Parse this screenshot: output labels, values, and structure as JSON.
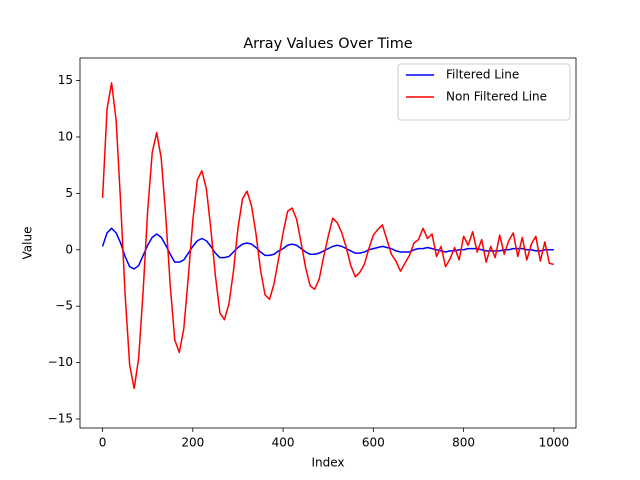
{
  "chart_data": {
    "type": "line",
    "title": "Array Values Over Time",
    "x_label": "Index",
    "y_label": "Value",
    "x": [
      0,
      10,
      20,
      30,
      40,
      50,
      60,
      70,
      80,
      90,
      100,
      110,
      120,
      130,
      140,
      150,
      160,
      170,
      180,
      190,
      200,
      210,
      220,
      230,
      240,
      250,
      260,
      270,
      280,
      290,
      300,
      310,
      320,
      330,
      340,
      350,
      360,
      370,
      380,
      390,
      400,
      410,
      420,
      430,
      440,
      450,
      460,
      470,
      480,
      490,
      500,
      510,
      520,
      530,
      540,
      550,
      560,
      570,
      580,
      590,
      600,
      610,
      620,
      630,
      640,
      650,
      660,
      670,
      680,
      690,
      700,
      710,
      720,
      730,
      740,
      750,
      760,
      770,
      780,
      790,
      800,
      810,
      820,
      830,
      840,
      850,
      860,
      870,
      880,
      890,
      900,
      910,
      920,
      930,
      940,
      950,
      960,
      970,
      980,
      990,
      1000
    ],
    "series": [
      {
        "name": "Filtered Line",
        "color": "#0000ff",
        "values": [
          0.3,
          1.5,
          1.9,
          1.5,
          0.6,
          -0.6,
          -1.5,
          -1.7,
          -1.4,
          -0.5,
          0.4,
          1.1,
          1.4,
          1.1,
          0.4,
          -0.4,
          -1.1,
          -1.1,
          -0.9,
          -0.3,
          0.3,
          0.8,
          1.0,
          0.8,
          0.3,
          -0.3,
          -0.7,
          -0.7,
          -0.6,
          -0.2,
          0.2,
          0.5,
          0.6,
          0.5,
          0.2,
          -0.2,
          -0.5,
          -0.5,
          -0.4,
          -0.1,
          0.1,
          0.4,
          0.5,
          0.4,
          0.1,
          -0.2,
          -0.4,
          -0.4,
          -0.3,
          -0.1,
          0.1,
          0.3,
          0.4,
          0.3,
          0.1,
          -0.1,
          -0.3,
          -0.3,
          -0.2,
          0.0,
          0.1,
          0.2,
          0.3,
          0.2,
          0.1,
          -0.1,
          -0.2,
          -0.2,
          -0.2,
          0.0,
          0.1,
          0.1,
          0.2,
          0.1,
          0.0,
          -0.1,
          -0.2,
          -0.1,
          -0.1,
          0.0,
          0.0,
          0.1,
          0.1,
          0.1,
          0.0,
          -0.1,
          -0.1,
          -0.1,
          -0.1,
          0.0,
          0.0,
          0.1,
          0.1,
          0.1,
          0.0,
          0.0,
          -0.1,
          -0.1,
          0.0,
          0.0,
          0.0
        ]
      },
      {
        "name": "Non Filtered Line",
        "color": "#ff0000",
        "values": [
          4.6,
          12.5,
          14.8,
          11.5,
          4.2,
          -4.0,
          -10.2,
          -12.3,
          -9.6,
          -3.6,
          3.5,
          8.6,
          10.4,
          8.1,
          3.0,
          -3.2,
          -8.0,
          -9.1,
          -7.0,
          -2.4,
          2.6,
          6.2,
          7.0,
          5.4,
          1.8,
          -2.3,
          -5.6,
          -6.2,
          -4.8,
          -1.9,
          1.9,
          4.5,
          5.2,
          3.9,
          1.4,
          -1.8,
          -4.0,
          -4.4,
          -3.0,
          -0.8,
          1.5,
          3.4,
          3.7,
          2.7,
          0.6,
          -1.6,
          -3.2,
          -3.5,
          -2.6,
          -0.6,
          1.2,
          2.8,
          2.4,
          1.5,
          0.2,
          -1.4,
          -2.4,
          -2.0,
          -1.3,
          0.1,
          1.3,
          1.8,
          2.2,
          0.9,
          -0.4,
          -1.0,
          -1.9,
          -1.2,
          -0.5,
          0.6,
          0.9,
          1.9,
          1.0,
          1.4,
          -0.6,
          0.3,
          -1.5,
          -0.8,
          0.2,
          -0.9,
          1.2,
          0.4,
          1.6,
          -0.2,
          0.9,
          -1.1,
          0.3,
          -0.7,
          1.3,
          -0.4,
          0.8,
          1.5,
          -0.6,
          1.1,
          -0.9,
          0.5,
          1.2,
          -1.0,
          0.7,
          -1.2,
          -1.3
        ]
      }
    ],
    "xlim": [
      -50,
      1049
    ],
    "ylim": [
      -15.8,
      17.0
    ],
    "xticks": [
      0,
      200,
      400,
      600,
      800,
      1000
    ],
    "yticks": [
      {
        "value": -15,
        "label": "−15"
      },
      {
        "value": -10,
        "label": "−10"
      },
      {
        "value": -5,
        "label": "−5"
      },
      0,
      5,
      10,
      15
    ],
    "grid": false,
    "legend": "upper right"
  }
}
